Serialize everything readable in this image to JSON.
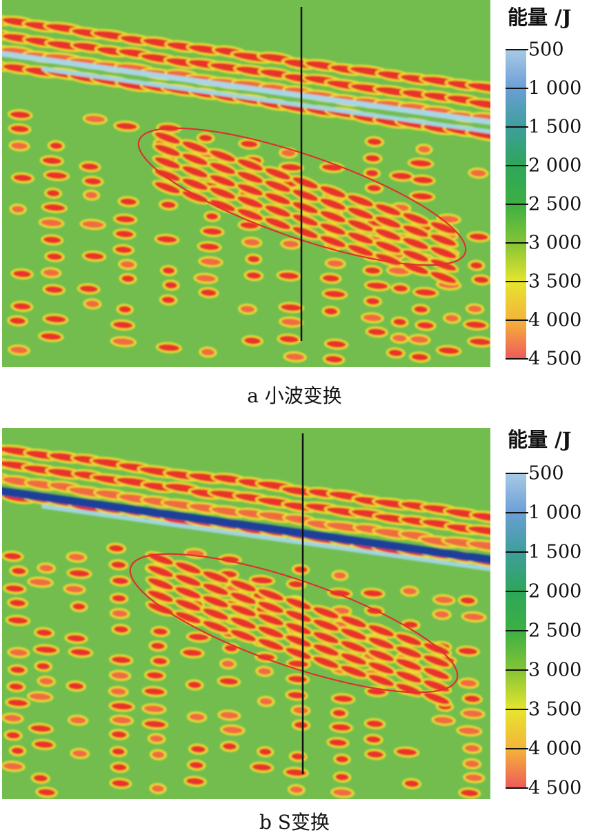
{
  "chart_data": [
    {
      "type": "heatmap",
      "caption": "a 小波变换",
      "colorbar": {
        "title": "能量 /J",
        "ticks": [
          "500",
          "1 000",
          "1 500",
          "2 000",
          "2 500",
          "3 000",
          "3 500",
          "4 000",
          "4 500"
        ],
        "range": [
          500,
          4500
        ],
        "colors": [
          "#a9c9e6",
          "#6a9fd6",
          "#3f9e9c",
          "#2ea65a",
          "#3cb043",
          "#84c436",
          "#e6e52e",
          "#f4b43a",
          "#ee5a5a"
        ]
      },
      "background_energy": 2700,
      "annotations": [
        "red ellipse highlighting dipping event",
        "black vertical well line"
      ],
      "colors": {
        "ellipse": "#e0312a",
        "well": "#111111"
      }
    },
    {
      "type": "heatmap",
      "caption": "b S变换",
      "colorbar": {
        "title": "能量 /J",
        "ticks": [
          "500",
          "1 000",
          "1 500",
          "2 000",
          "2 500",
          "3 000",
          "3 500",
          "4 000",
          "4 500"
        ],
        "range": [
          500,
          4500
        ],
        "colors": [
          "#a9c9e6",
          "#6a9fd6",
          "#3f9e9c",
          "#2ea65a",
          "#3cb043",
          "#84c436",
          "#e6e52e",
          "#f4b43a",
          "#ee5a5a"
        ]
      },
      "background_energy": 2700,
      "annotations": [
        "red ellipse highlighting dipping event",
        "black vertical well line"
      ],
      "colors": {
        "ellipse": "#e0312a",
        "well": "#111111"
      }
    }
  ]
}
